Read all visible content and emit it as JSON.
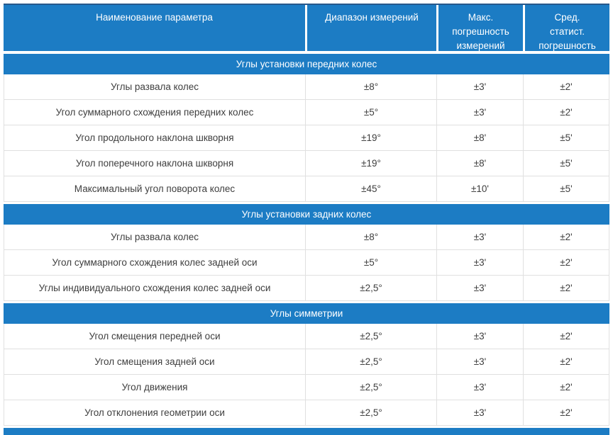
{
  "colors": {
    "band_blue": "#1c7cc4",
    "header_top_border": "#27588b",
    "row_border": "#e0e0e0",
    "body_text": "#3e3e3e",
    "header_text": "#ffffff"
  },
  "table": {
    "columns": [
      {
        "label": "Наименование параметра"
      },
      {
        "label": "Диапазон измерений"
      },
      {
        "label": "Макс.\nпогрешность\nизмерений"
      },
      {
        "label": "Сред.\nстатист.\nпогрешность"
      }
    ],
    "sections": [
      {
        "title": "Углы установки передних колес",
        "rows": [
          [
            "Углы развала колес",
            "±8°",
            "±3'",
            "±2'"
          ],
          [
            "Угол суммарного схождения передних колес",
            "±5°",
            "±3'",
            "±2'"
          ],
          [
            "Угол продольного наклона шкворня",
            "±19°",
            "±8'",
            "±5'"
          ],
          [
            "Угол поперечного наклона шкворня",
            "±19°",
            "±8'",
            "±5'"
          ],
          [
            "Максимальный угол поворота колес",
            "±45°",
            "±10'",
            "±5'"
          ]
        ]
      },
      {
        "title": "Углы установки задних колес",
        "rows": [
          [
            "Углы развала колес",
            "±8°",
            "±3'",
            "±2'"
          ],
          [
            "Угол суммарного схождения колес задней оси",
            "±5°",
            "±3'",
            "±2'"
          ],
          [
            "Углы индивидуального схождения колес задней оси",
            "±2,5°",
            "±3'",
            "±2'"
          ]
        ]
      },
      {
        "title": "Углы симметрии",
        "rows": [
          [
            "Угол смещения передней оси",
            "±2,5°",
            "±3'",
            "±2'"
          ],
          [
            "Угол смещения задней оси",
            "±2,5°",
            "±3'",
            "±2'"
          ],
          [
            "Угол движения",
            "±2,5°",
            "±3'",
            "±2'"
          ],
          [
            "Угол отклонения геометрии оси",
            "±2,5°",
            "±3'",
            "±2'"
          ]
        ]
      }
    ]
  }
}
